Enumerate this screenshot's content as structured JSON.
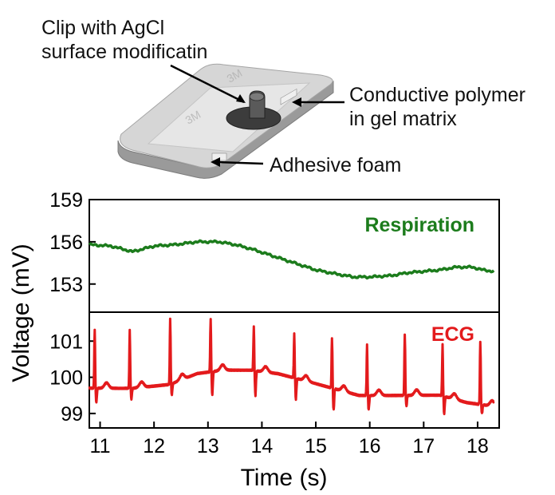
{
  "illustration": {
    "labels": {
      "clip_line1": "Clip with AgCl",
      "clip_line2": "surface modificatin",
      "polymer_line1": "Conductive polymer",
      "polymer_line2": "in gel matrix",
      "foam": "Adhesive foam"
    },
    "colors": {
      "pad": "#d2d2d2",
      "pad_edge": "#8e8e8e",
      "clip": "#3a3a3a",
      "gel": "#c9c9c9"
    }
  },
  "chart_data": [
    {
      "type": "line",
      "name": "Respiration",
      "series_label": "Respiration",
      "color": "#1c7c1c",
      "ylim": [
        151,
        159
      ],
      "yticks": [
        153,
        156,
        159
      ],
      "xlim": [
        10.8,
        18.4
      ],
      "points": [
        [
          10.8,
          155.8
        ],
        [
          11.2,
          155.7
        ],
        [
          11.6,
          155.3
        ],
        [
          12.0,
          155.7
        ],
        [
          12.4,
          155.8
        ],
        [
          12.8,
          156.0
        ],
        [
          13.2,
          156.0
        ],
        [
          13.5,
          155.8
        ],
        [
          13.8,
          155.5
        ],
        [
          14.2,
          155.0
        ],
        [
          14.6,
          154.5
        ],
        [
          15.0,
          154.0
        ],
        [
          15.4,
          153.7
        ],
        [
          15.7,
          153.5
        ],
        [
          16.0,
          153.5
        ],
        [
          16.4,
          153.6
        ],
        [
          16.7,
          153.8
        ],
        [
          17.0,
          153.9
        ],
        [
          17.3,
          154.0
        ],
        [
          17.6,
          154.2
        ],
        [
          17.9,
          154.2
        ],
        [
          18.1,
          154.0
        ],
        [
          18.3,
          153.9
        ]
      ]
    },
    {
      "type": "line",
      "name": "ECG",
      "series_label": "ECG",
      "color": "#e31a1c",
      "ylim": [
        98.6,
        101.8
      ],
      "yticks": [
        99,
        100,
        101
      ],
      "xlim": [
        10.8,
        18.4
      ],
      "baseline": [
        [
          10.8,
          99.7
        ],
        [
          11.6,
          99.7
        ],
        [
          12.3,
          99.8
        ],
        [
          12.8,
          100.1
        ],
        [
          13.3,
          100.2
        ],
        [
          13.8,
          100.2
        ],
        [
          14.3,
          100.1
        ],
        [
          14.8,
          99.9
        ],
        [
          15.3,
          99.7
        ],
        [
          15.8,
          99.5
        ],
        [
          16.3,
          99.5
        ],
        [
          16.8,
          99.5
        ],
        [
          17.3,
          99.5
        ],
        [
          17.8,
          99.3
        ],
        [
          18.3,
          99.2
        ]
      ],
      "beats": [
        {
          "t": 10.9,
          "r": 101.3,
          "s": 99.3
        },
        {
          "t": 11.55,
          "r": 101.3,
          "s": 99.4
        },
        {
          "t": 12.3,
          "r": 101.6,
          "s": 99.5
        },
        {
          "t": 13.05,
          "r": 101.6,
          "s": 99.5
        },
        {
          "t": 13.85,
          "r": 101.4,
          "s": 99.5
        },
        {
          "t": 14.6,
          "r": 101.2,
          "s": 99.4
        },
        {
          "t": 15.3,
          "r": 101.1,
          "s": 99.1
        },
        {
          "t": 15.95,
          "r": 100.9,
          "s": 99.1
        },
        {
          "t": 16.65,
          "r": 101.2,
          "s": 99.2
        },
        {
          "t": 17.35,
          "r": 100.9,
          "s": 99.0
        },
        {
          "t": 18.05,
          "r": 101.0,
          "s": 99.0
        }
      ]
    }
  ],
  "axes": {
    "xlabel": "Time (s)",
    "ylabel": "Voltage (mV)",
    "xticks": [
      11,
      12,
      13,
      14,
      15,
      16,
      17,
      18
    ]
  }
}
